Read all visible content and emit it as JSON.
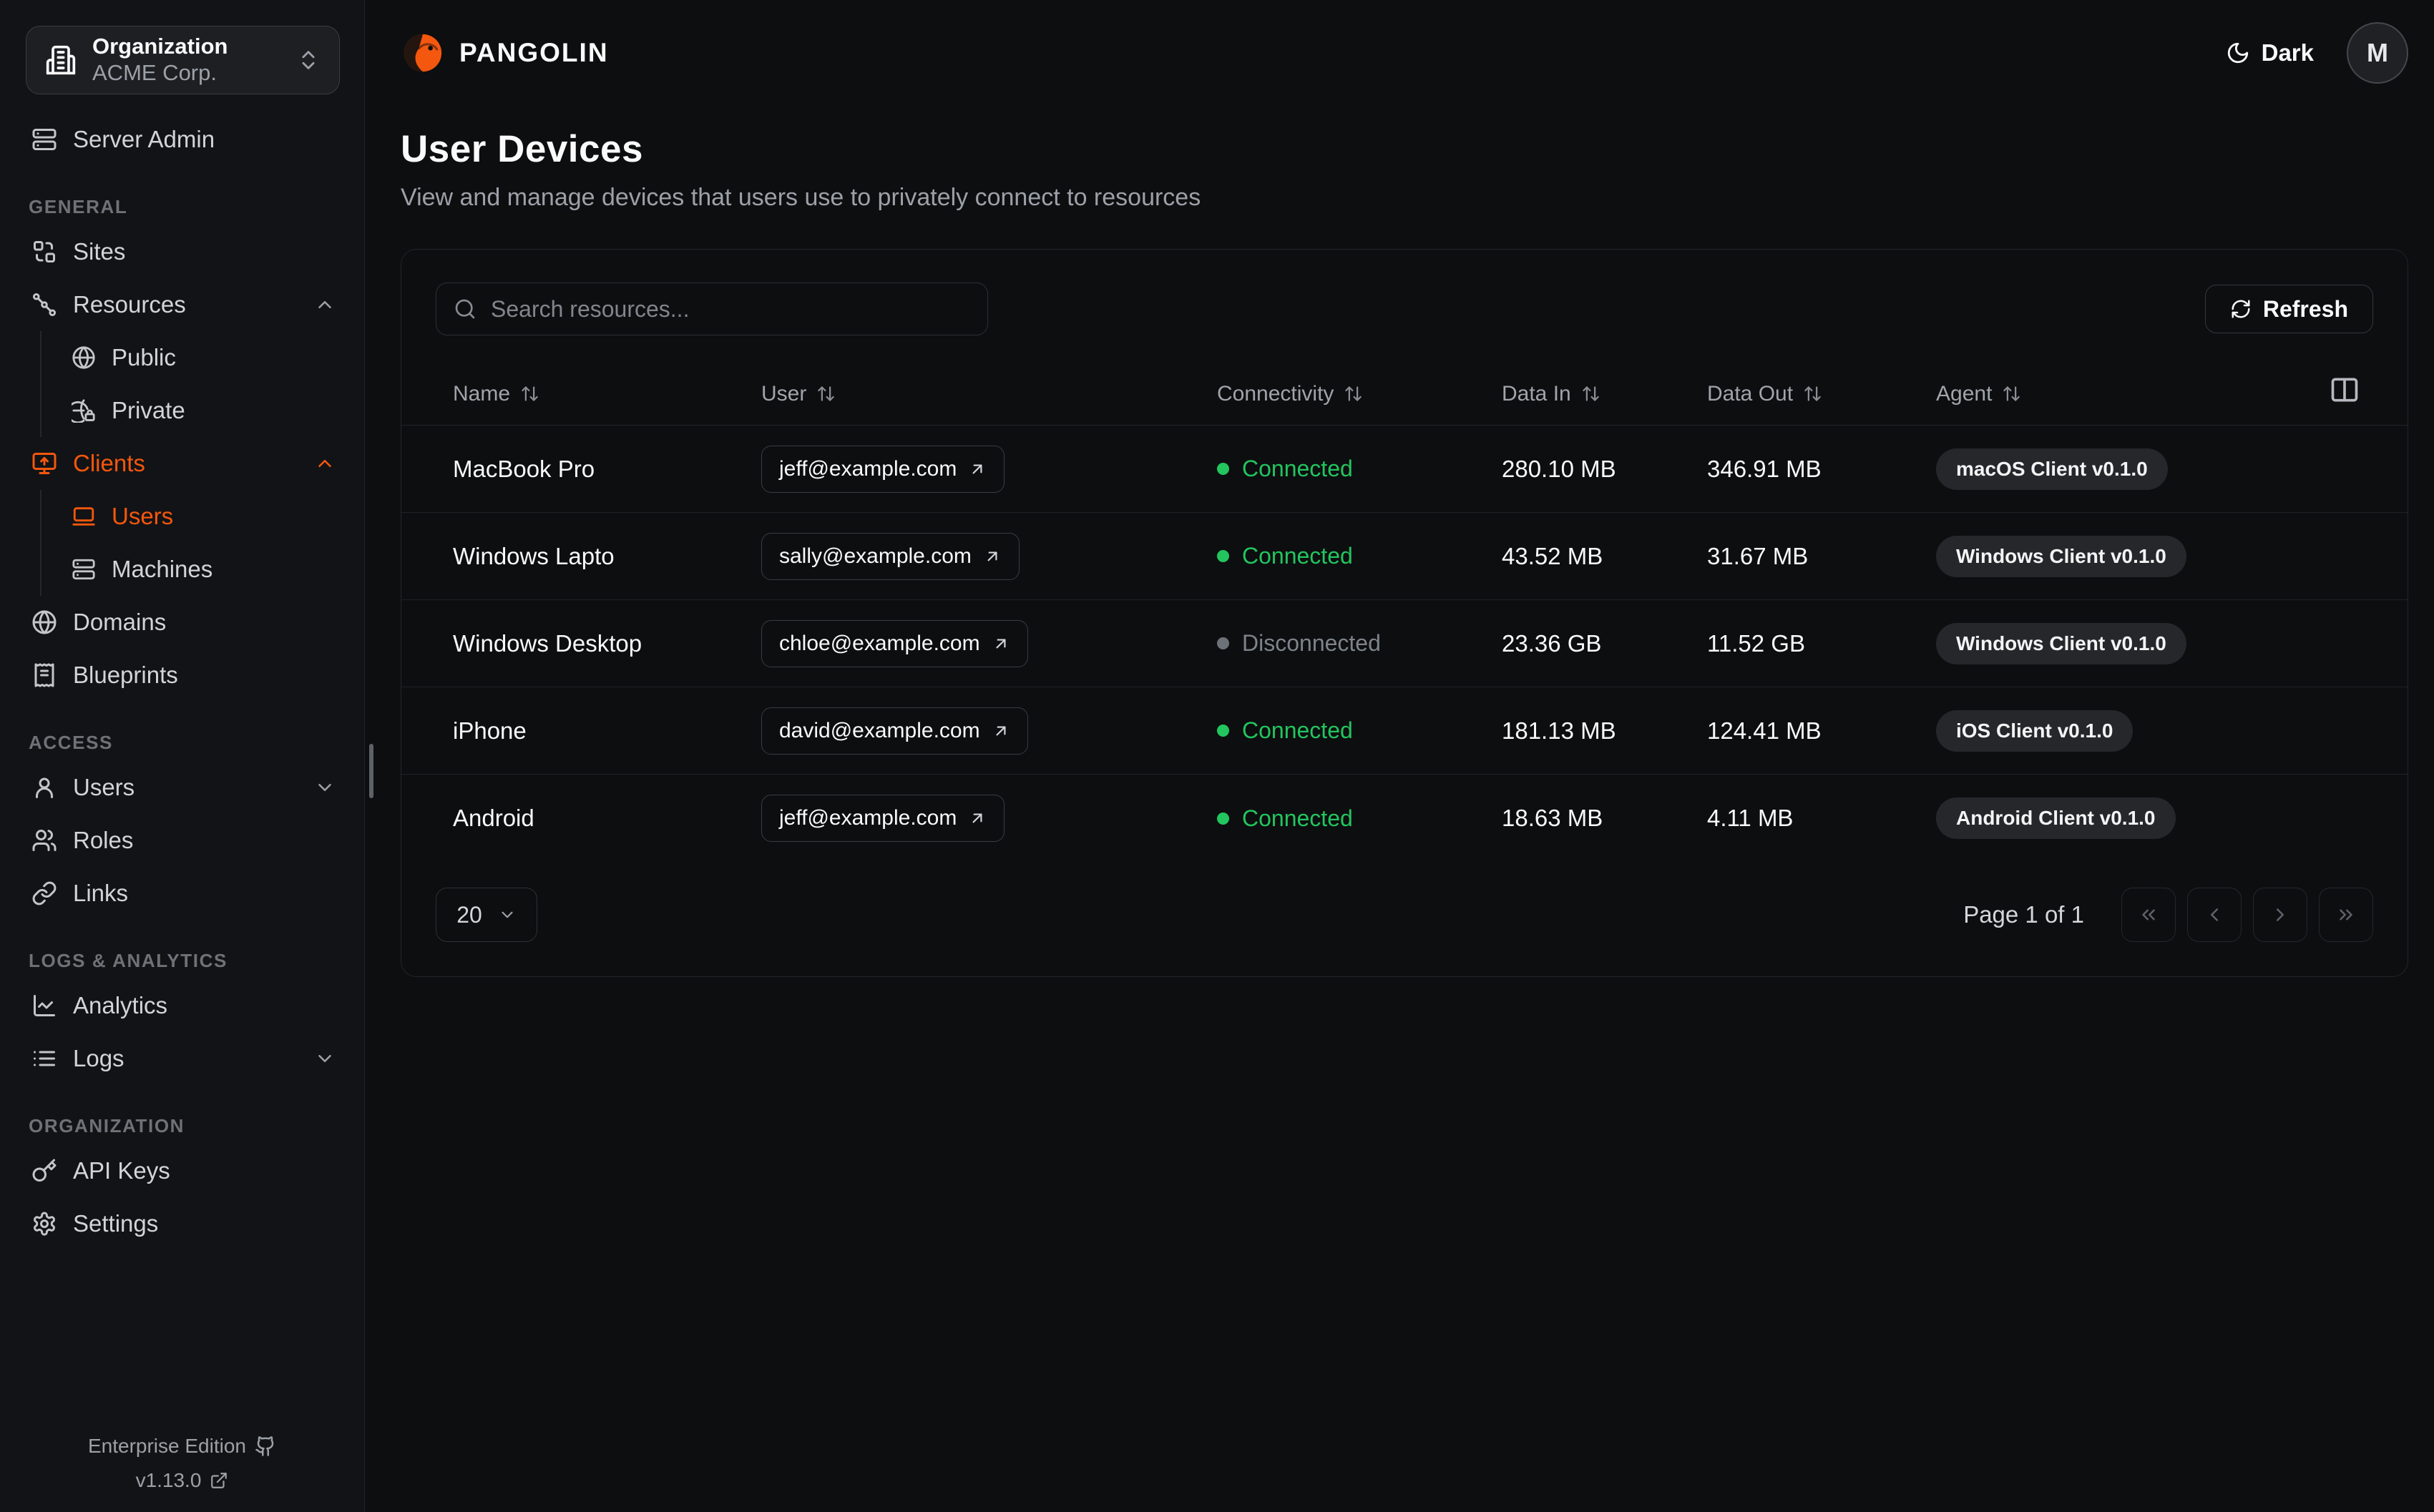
{
  "colors": {
    "accent": "#f4570e",
    "connected": "#22c55e",
    "background": "#0d0e10"
  },
  "sidebar": {
    "org": {
      "label": "Organization",
      "value": "ACME Corp.",
      "icon": "building",
      "chevron_icon": "chevrons-up-down"
    },
    "items": [
      {
        "label": "Server Admin",
        "icon": "server"
      }
    ],
    "sections": [
      {
        "label": "GENERAL",
        "items": [
          {
            "label": "Sites",
            "icon": "combine"
          },
          {
            "label": "Resources",
            "icon": "waypoints",
            "expanded": true,
            "children": [
              {
                "label": "Public",
                "icon": "globe"
              },
              {
                "label": "Private",
                "icon": "globe-lock"
              }
            ]
          },
          {
            "label": "Clients",
            "icon": "monitor-up",
            "expanded": true,
            "active": true,
            "children": [
              {
                "label": "Users",
                "icon": "laptop",
                "active": true
              },
              {
                "label": "Machines",
                "icon": "server"
              }
            ]
          },
          {
            "label": "Domains",
            "icon": "globe"
          },
          {
            "label": "Blueprints",
            "icon": "receipt"
          }
        ]
      },
      {
        "label": "ACCESS",
        "items": [
          {
            "label": "Users",
            "icon": "user",
            "expanded": false
          },
          {
            "label": "Roles",
            "icon": "users"
          },
          {
            "label": "Links",
            "icon": "link"
          }
        ]
      },
      {
        "label": "LOGS & ANALYTICS",
        "items": [
          {
            "label": "Analytics",
            "icon": "chart"
          },
          {
            "label": "Logs",
            "icon": "list",
            "expanded": false
          }
        ]
      },
      {
        "label": "ORGANIZATION",
        "items": [
          {
            "label": "API Keys",
            "icon": "key"
          },
          {
            "label": "Settings",
            "icon": "gear"
          }
        ]
      }
    ],
    "footer": {
      "edition": "Enterprise Edition",
      "edition_icon": "github",
      "version": "v1.13.0",
      "version_icon": "external"
    }
  },
  "header": {
    "brand": "PANGOLIN",
    "brand_icon": "logo",
    "theme_label": "Dark",
    "theme_icon": "moon",
    "avatar_initial": "M"
  },
  "page": {
    "title": "User Devices",
    "subtitle": "View and manage devices that users use to privately connect to resources"
  },
  "toolbar": {
    "search_placeholder": "Search resources...",
    "search_icon": "search",
    "refresh_label": "Refresh",
    "refresh_icon": "refresh"
  },
  "table": {
    "columns_button_icon": "columns",
    "columns": [
      {
        "label": "Name"
      },
      {
        "label": "User"
      },
      {
        "label": "Connectivity"
      },
      {
        "label": "Data In"
      },
      {
        "label": "Data Out"
      },
      {
        "label": "Agent"
      }
    ],
    "rows": [
      {
        "name": "MacBook Pro",
        "user": "jeff@example.com",
        "connectivity": "Connected",
        "status": "connected",
        "data_in": "280.10 MB",
        "data_out": "346.91 MB",
        "agent": "macOS Client v0.1.0"
      },
      {
        "name": "Windows Lapto",
        "user": "sally@example.com",
        "connectivity": "Connected",
        "status": "connected",
        "data_in": "43.52 MB",
        "data_out": "31.67 MB",
        "agent": "Windows Client v0.1.0"
      },
      {
        "name": "Windows Desktop",
        "user": "chloe@example.com",
        "connectivity": "Disconnected",
        "status": "disconnected",
        "data_in": "23.36 GB",
        "data_out": "11.52 GB",
        "agent": "Windows Client v0.1.0"
      },
      {
        "name": "iPhone",
        "user": "david@example.com",
        "connectivity": "Connected",
        "status": "connected",
        "data_in": "181.13 MB",
        "data_out": "124.41 MB",
        "agent": "iOS Client v0.1.0"
      },
      {
        "name": "Android",
        "user": "jeff@example.com",
        "connectivity": "Connected",
        "status": "connected",
        "data_in": "18.63 MB",
        "data_out": "4.11 MB",
        "agent": "Android Client v0.1.0"
      }
    ]
  },
  "pagination": {
    "page_size": "20",
    "page_size_icon": "chevron-down",
    "page_label": "Page 1 of 1",
    "buttons": [
      {
        "name": "first-page",
        "icon": "chevrons-left"
      },
      {
        "name": "previous-page",
        "icon": "chevron-left"
      },
      {
        "name": "next-page",
        "icon": "chevron-right"
      },
      {
        "name": "last-page",
        "icon": "chevrons-right"
      }
    ]
  }
}
